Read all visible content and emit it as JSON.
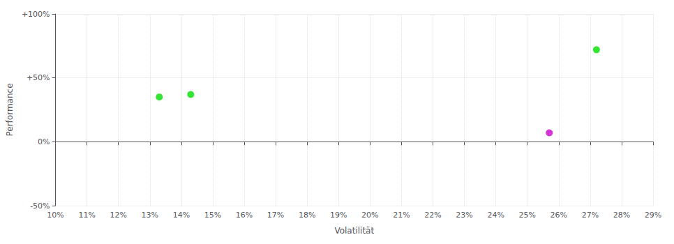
{
  "chart_data": {
    "type": "scatter",
    "xlabel": "Volatilität",
    "ylabel": "Performance",
    "x": [
      0.133,
      0.143,
      0.272,
      0.257
    ],
    "values": [
      0.35,
      0.37,
      0.72,
      0.07
    ],
    "colors": [
      "#00dd00",
      "#00dd00",
      "#00dd00",
      "#cc00cc"
    ],
    "xlim": [
      0.1,
      0.29
    ],
    "ylim": [
      -0.5,
      1.0
    ],
    "xticks": [
      {
        "value": 0.1,
        "label": "10%"
      },
      {
        "value": 0.11,
        "label": "11%"
      },
      {
        "value": 0.12,
        "label": "12%"
      },
      {
        "value": 0.13,
        "label": "13%"
      },
      {
        "value": 0.14,
        "label": "14%"
      },
      {
        "value": 0.15,
        "label": "15%"
      },
      {
        "value": 0.16,
        "label": "16%"
      },
      {
        "value": 0.17,
        "label": "17%"
      },
      {
        "value": 0.18,
        "label": "18%"
      },
      {
        "value": 0.19,
        "label": "19%"
      },
      {
        "value": 0.2,
        "label": "20%"
      },
      {
        "value": 0.21,
        "label": "21%"
      },
      {
        "value": 0.22,
        "label": "22%"
      },
      {
        "value": 0.23,
        "label": "23%"
      },
      {
        "value": 0.24,
        "label": "24%"
      },
      {
        "value": 0.25,
        "label": "25%"
      },
      {
        "value": 0.26,
        "label": "26%"
      },
      {
        "value": 0.27,
        "label": "27%"
      },
      {
        "value": 0.28,
        "label": "28%"
      },
      {
        "value": 0.29,
        "label": "29%"
      }
    ],
    "yticks": [
      {
        "value": -0.5,
        "label": "-50%"
      },
      {
        "value": 0.0,
        "label": "0%"
      },
      {
        "value": 0.5,
        "label": "+50%"
      },
      {
        "value": 1.0,
        "label": "+100%"
      }
    ],
    "grid": true
  }
}
